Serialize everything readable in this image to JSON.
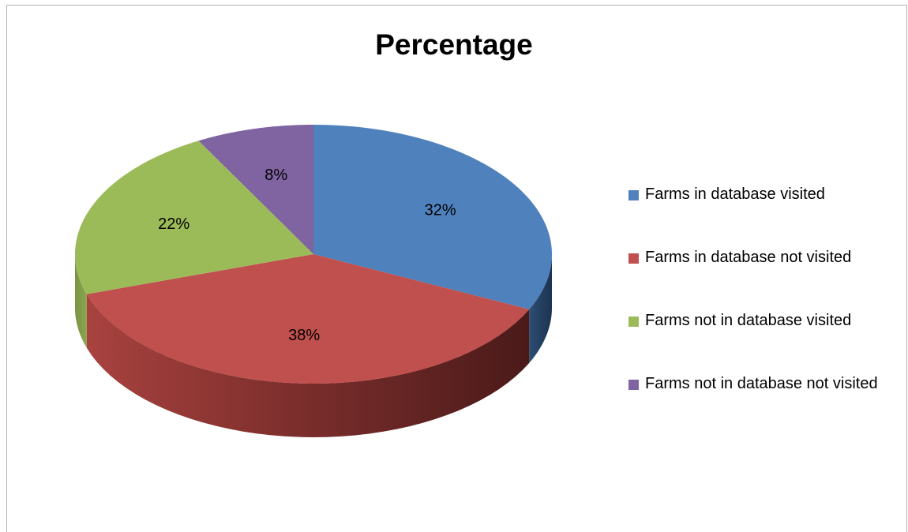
{
  "chart_data": {
    "type": "pie",
    "title": "Percentage",
    "categories": [
      "Farms in database visited",
      "Farms in database not visited",
      "Farms not in database visited",
      "Farms not in database not visited"
    ],
    "values": [
      32,
      38,
      22,
      8
    ],
    "data_labels": [
      "32%",
      "38%",
      "22%",
      "8%"
    ],
    "colors": [
      "#4F81BD",
      "#C0504D",
      "#9BBB59",
      "#8064A2"
    ],
    "legend_position": "right",
    "style": "3d"
  }
}
